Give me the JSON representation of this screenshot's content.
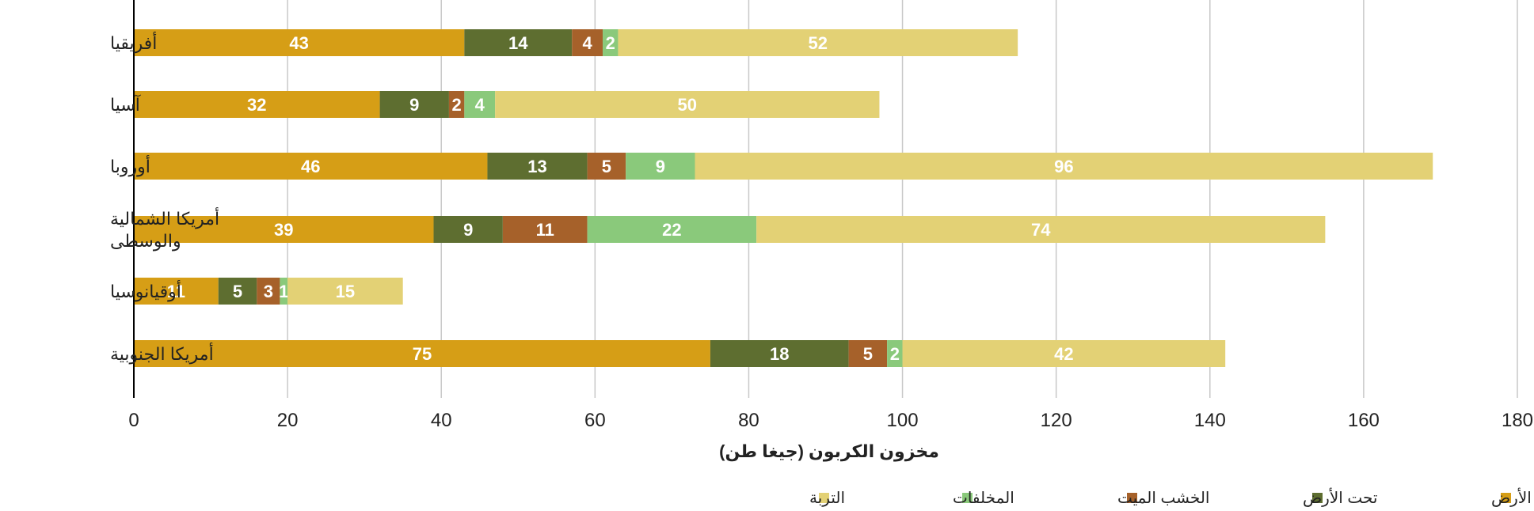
{
  "chart_data": {
    "type": "bar",
    "orientation": "horizontal",
    "stacked": true,
    "categories": [
      [
        "أفريقيا"
      ],
      [
        "آسيا"
      ],
      [
        "أوروبا"
      ],
      [
        "أمريكا الشمالية",
        "والوسطى"
      ],
      [
        "أوقيانوسيا"
      ],
      [
        "أمريكا الجنوبية"
      ]
    ],
    "series": [
      {
        "name": "فوق الأرض",
        "color": "#D69E16",
        "values": [
          43,
          32,
          46,
          39,
          11,
          75
        ]
      },
      {
        "name": "تحت الأرض",
        "color": "#5E6E30",
        "values": [
          14,
          9,
          13,
          9,
          5,
          18
        ]
      },
      {
        "name": "الخشب الميت",
        "color": "#A6612A",
        "values": [
          4,
          2,
          5,
          11,
          3,
          5
        ]
      },
      {
        "name": "المخلفات",
        "color": "#8AC97B",
        "values": [
          2,
          4,
          9,
          22,
          1,
          2
        ]
      },
      {
        "name": "التربة",
        "color": "#E3D175",
        "values": [
          52,
          50,
          96,
          74,
          15,
          42
        ]
      }
    ],
    "xlabel": "مخزون الكربون (جيغا طن)",
    "ylabel": "",
    "xlim": [
      0,
      180
    ],
    "xticks": [
      0,
      20,
      40,
      60,
      80,
      100,
      120,
      140,
      160,
      180
    ],
    "grid": "vertical",
    "legend_position": "bottom"
  }
}
